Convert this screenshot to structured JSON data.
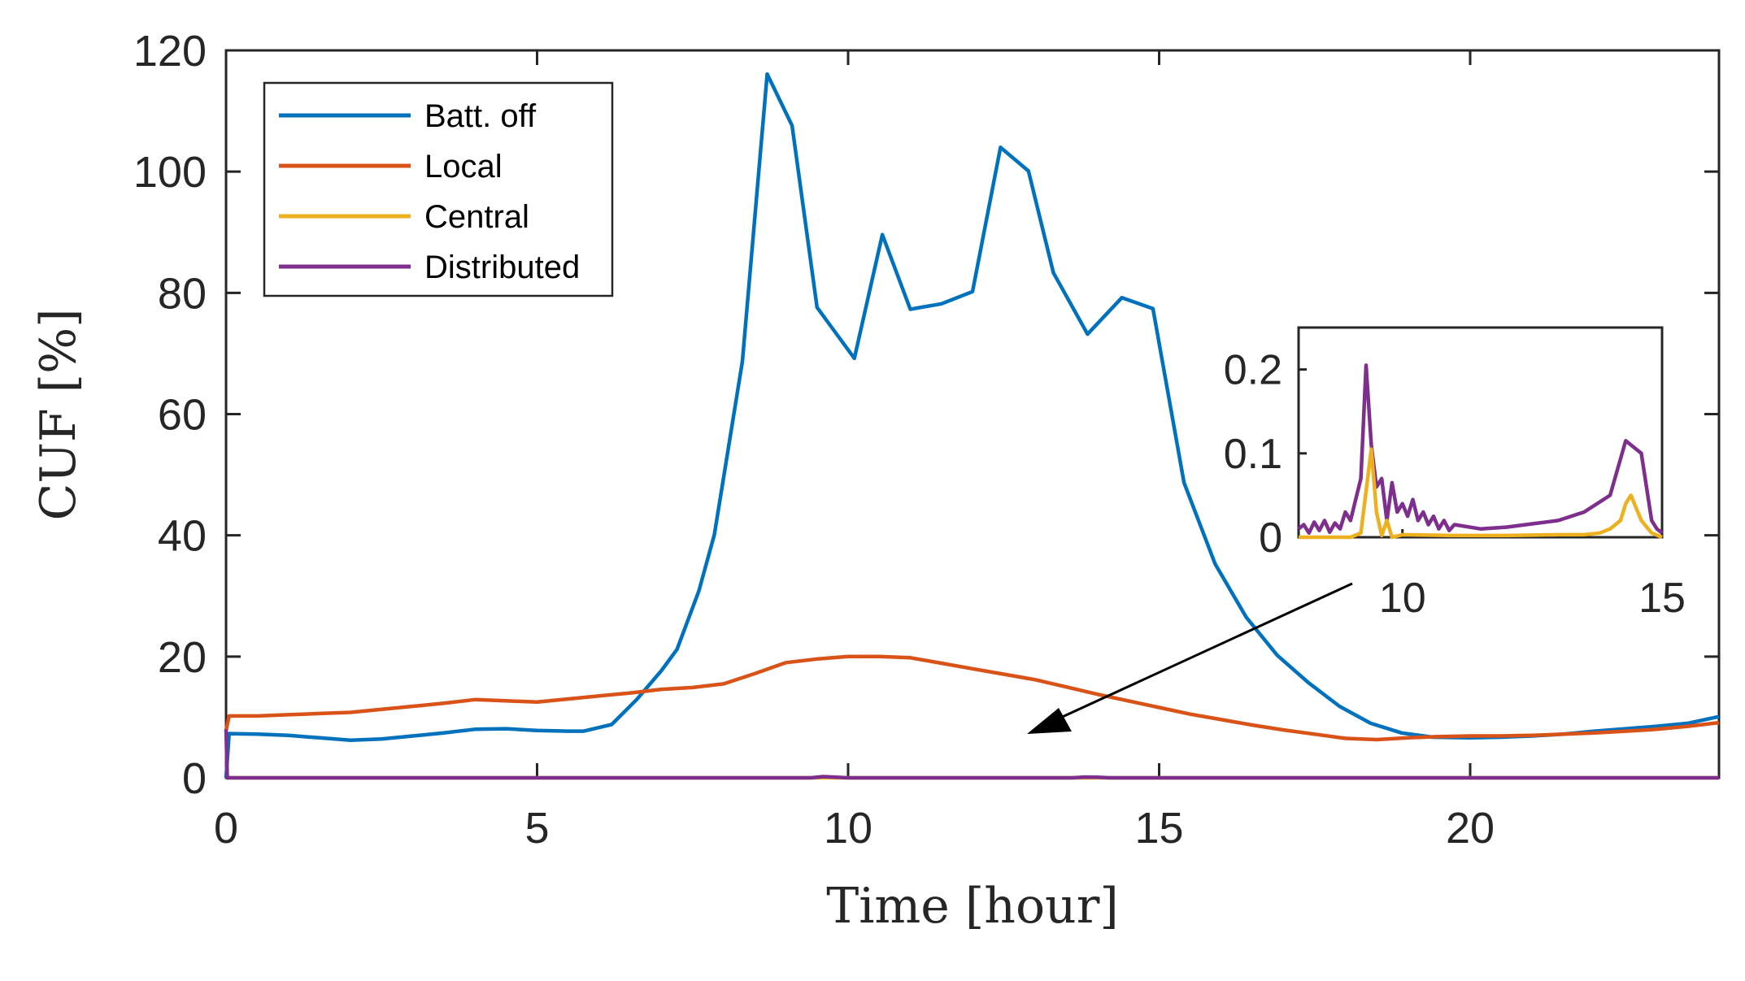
{
  "chart_data": {
    "type": "line",
    "title": "",
    "xlabel": "Time [hour]",
    "ylabel": "CUF [%]",
    "xlim": [
      0,
      24
    ],
    "ylim": [
      0,
      120
    ],
    "xticks": [
      0,
      5,
      10,
      15,
      20
    ],
    "yticks": [
      0,
      20,
      40,
      60,
      80,
      100,
      120
    ],
    "legend_position": "top-left",
    "series": [
      {
        "name": "Batt. off",
        "color": "#0072BD",
        "x": [
          0,
          0.05,
          0.5,
          1,
          1.5,
          2,
          2.5,
          3,
          3.5,
          4,
          4.5,
          5,
          5.5,
          5.75,
          6.2,
          6.6,
          7.0,
          7.25,
          7.6,
          7.85,
          8.3,
          8.7,
          9.1,
          9.5,
          10.1,
          10.55,
          11.0,
          11.5,
          12.0,
          12.45,
          12.9,
          13.3,
          13.85,
          14.4,
          14.9,
          15.4,
          15.9,
          16.4,
          16.9,
          17.4,
          17.9,
          18.4,
          18.9,
          19.4,
          20,
          20.5,
          21,
          21.5,
          22,
          22.5,
          23,
          23.5,
          24
        ],
        "values": [
          0,
          7.3,
          7.2,
          7.0,
          6.6,
          6.2,
          6.4,
          6.9,
          7.4,
          8.0,
          8.1,
          7.8,
          7.7,
          7.7,
          8.8,
          12.9,
          17.7,
          21.2,
          30.8,
          40.1,
          68.7,
          116.1,
          107.6,
          77.6,
          69.2,
          89.6,
          77.3,
          78.2,
          80.2,
          104.0,
          100.1,
          83.3,
          73.2,
          79.2,
          77.4,
          48.7,
          35.3,
          26.5,
          20.2,
          15.7,
          11.8,
          9.0,
          7.4,
          6.7,
          6.6,
          6.7,
          6.9,
          7.2,
          7.7,
          8.1,
          8.5,
          9.0,
          10.1
        ]
      },
      {
        "name": "Local",
        "color": "#D95319",
        "x": [
          0,
          0.05,
          0.5,
          1,
          1.5,
          2,
          2.5,
          3,
          3.5,
          4,
          4.5,
          5,
          5.5,
          6,
          6.5,
          7,
          7.5,
          8,
          8.5,
          9,
          9.5,
          10,
          10.5,
          11,
          11.5,
          12,
          12.5,
          13,
          13.5,
          14,
          14.5,
          15,
          15.5,
          16,
          16.5,
          17,
          17.5,
          18,
          18.5,
          19,
          19.5,
          20,
          20.5,
          21,
          21.5,
          22,
          22.5,
          23,
          23.5,
          24
        ],
        "values": [
          7.8,
          10.2,
          10.2,
          10.4,
          10.6,
          10.8,
          11.3,
          11.8,
          12.3,
          12.9,
          12.7,
          12.5,
          13.0,
          13.5,
          14.0,
          14.6,
          14.9,
          15.5,
          17.2,
          19.0,
          19.6,
          20.0,
          20.0,
          19.8,
          18.9,
          18.0,
          17.1,
          16.2,
          15.0,
          13.8,
          12.7,
          11.6,
          10.5,
          9.6,
          8.7,
          7.9,
          7.2,
          6.5,
          6.3,
          6.6,
          6.8,
          6.9,
          6.9,
          7.0,
          7.2,
          7.4,
          7.7,
          8.0,
          8.5,
          9.1
        ]
      },
      {
        "name": "Central",
        "color": "#EDB120",
        "x": [
          0,
          24
        ],
        "values": [
          0,
          0
        ]
      },
      {
        "name": "Distributed",
        "color": "#7E2F8E",
        "x": [
          0,
          0.02,
          9.4,
          9.6,
          9.8,
          10.0,
          13.6,
          13.8,
          14.0,
          14.2,
          24
        ],
        "values": [
          8,
          0,
          0,
          0.2,
          0.1,
          0,
          0,
          0.12,
          0.1,
          0,
          0
        ]
      }
    ],
    "inset": {
      "xlim": [
        8,
        15
      ],
      "ylim": [
        0,
        0.25
      ],
      "xticks": [
        10,
        15
      ],
      "yticks": [
        0,
        0.1,
        0.2
      ],
      "ytick_labels": [
        "0",
        "0.1",
        "0.2"
      ],
      "series": [
        {
          "name": "Distributed",
          "color": "#7E2F8E",
          "x": [
            8.0,
            8.1,
            8.2,
            8.3,
            8.4,
            8.5,
            8.6,
            8.7,
            8.8,
            8.9,
            9.0,
            9.1,
            9.2,
            9.3,
            9.4,
            9.5,
            9.6,
            9.7,
            9.8,
            9.9,
            10.0,
            10.1,
            10.2,
            10.3,
            10.4,
            10.5,
            10.6,
            10.7,
            10.8,
            10.9,
            11.0,
            11.5,
            12.0,
            12.5,
            13.0,
            13.5,
            14.0,
            14.3,
            14.6,
            14.8,
            14.9,
            15.0
          ],
          "values": [
            0.01,
            0.015,
            0.005,
            0.018,
            0.008,
            0.02,
            0.006,
            0.017,
            0.01,
            0.03,
            0.02,
            0.045,
            0.07,
            0.205,
            0.11,
            0.06,
            0.07,
            0.02,
            0.065,
            0.03,
            0.04,
            0.025,
            0.045,
            0.02,
            0.03,
            0.015,
            0.025,
            0.01,
            0.02,
            0.008,
            0.015,
            0.01,
            0.012,
            0.016,
            0.02,
            0.03,
            0.05,
            0.115,
            0.1,
            0.02,
            0.01,
            0.005
          ]
        },
        {
          "name": "Central",
          "color": "#EDB120",
          "x": [
            8.0,
            9.0,
            9.2,
            9.3,
            9.4,
            9.5,
            9.6,
            9.7,
            9.8,
            10.0,
            11.0,
            12.0,
            13.0,
            13.5,
            13.8,
            14.0,
            14.2,
            14.3,
            14.4,
            14.6,
            14.8,
            15.0
          ],
          "values": [
            0,
            0,
            0.005,
            0.055,
            0.105,
            0.03,
            0.002,
            0.02,
            0.0,
            0.003,
            0.002,
            0.002,
            0.003,
            0.003,
            0.005,
            0.01,
            0.02,
            0.04,
            0.05,
            0.02,
            0.005,
            0
          ]
        }
      ]
    }
  }
}
